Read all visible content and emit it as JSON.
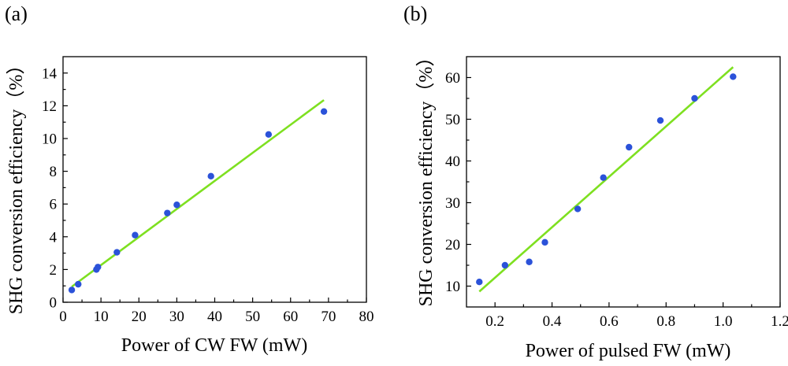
{
  "chart_data": [
    {
      "type": "scatter",
      "panel_label": "(a)",
      "xlabel": "Power of CW FW (mW)",
      "ylabel": "SHG conversion efficiency（%）",
      "xlim": [
        0,
        80
      ],
      "ylim": [
        0,
        15
      ],
      "xticks": [
        0,
        10,
        20,
        30,
        40,
        50,
        60,
        70,
        80
      ],
      "yticks": [
        0,
        2,
        4,
        6,
        8,
        10,
        12,
        14
      ],
      "grid": false,
      "marker_color": "#2b52d9",
      "fit_color": "#7ee020",
      "points": [
        {
          "x": 2.3,
          "y": 0.75
        },
        {
          "x": 4.0,
          "y": 1.1
        },
        {
          "x": 8.8,
          "y": 2.0
        },
        {
          "x": 9.2,
          "y": 2.15
        },
        {
          "x": 14.2,
          "y": 3.05
        },
        {
          "x": 19.0,
          "y": 4.1
        },
        {
          "x": 27.5,
          "y": 5.45
        },
        {
          "x": 30.0,
          "y": 5.95
        },
        {
          "x": 39.0,
          "y": 7.7
        },
        {
          "x": 54.2,
          "y": 10.25
        },
        {
          "x": 68.8,
          "y": 11.65
        }
      ],
      "fit_line": {
        "x": [
          2.3,
          68.8
        ],
        "y": [
          0.95,
          12.35
        ]
      }
    },
    {
      "type": "scatter",
      "panel_label": "(b)",
      "xlabel": "Power of pulsed FW (mW)",
      "ylabel": "SHG conversion efficiency（%）",
      "xlim": [
        0.1,
        1.2
      ],
      "ylim": [
        5,
        65
      ],
      "xticks": [
        0.2,
        0.4,
        0.6,
        0.8,
        1.0,
        1.2
      ],
      "ytick_values": [
        10,
        20,
        30,
        40,
        50,
        60
      ],
      "grid": false,
      "marker_color": "#2b52d9",
      "fit_color": "#7ee020",
      "points": [
        {
          "x": 0.145,
          "y": 11.0
        },
        {
          "x": 0.235,
          "y": 15.0
        },
        {
          "x": 0.32,
          "y": 15.8
        },
        {
          "x": 0.375,
          "y": 20.5
        },
        {
          "x": 0.49,
          "y": 28.5
        },
        {
          "x": 0.58,
          "y": 36.0
        },
        {
          "x": 0.67,
          "y": 43.3
        },
        {
          "x": 0.78,
          "y": 49.7
        },
        {
          "x": 0.9,
          "y": 55.0
        },
        {
          "x": 1.035,
          "y": 60.2
        }
      ],
      "fit_line": {
        "x": [
          0.145,
          1.035
        ],
        "y": [
          8.7,
          62.5
        ]
      }
    }
  ]
}
